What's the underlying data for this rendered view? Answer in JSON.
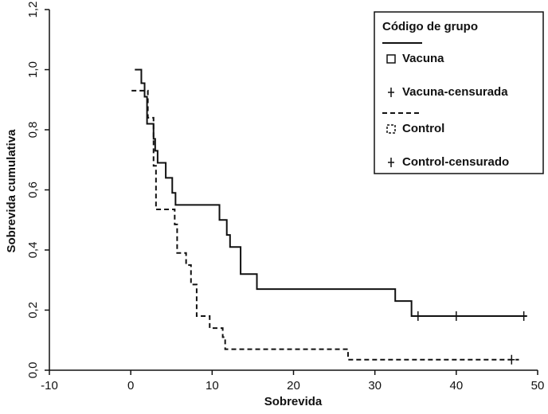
{
  "chart_data": {
    "type": "step",
    "x_label": "Sobrevida",
    "y_label": "Sobrevida cumulativa",
    "legend_title": "Código de grupo",
    "legend_position": "upper right",
    "xlim": [
      -10,
      50
    ],
    "xticks": [
      -10,
      0,
      10,
      20,
      30,
      40,
      50
    ],
    "ylim": [
      0,
      1.2
    ],
    "yticks": [
      {
        "value": 0,
        "label": "0,0"
      },
      {
        "value": 0.2,
        "label": "0,2"
      },
      {
        "value": 0.4,
        "label": "0,4"
      },
      {
        "value": 0.6,
        "label": "0,6"
      },
      {
        "value": 0.8,
        "label": "0,8"
      },
      {
        "value": 1.0,
        "label": "1,0"
      },
      {
        "value": 1.2,
        "label": "1,2"
      }
    ],
    "series": [
      {
        "name": "Vacuna",
        "style": "solid",
        "color": "#111111",
        "x": [
          0.5,
          1.3,
          1.7,
          2.0,
          2.8,
          3.0,
          3.3,
          4.3,
          5.1,
          5.5,
          10.9,
          11.8,
          12.2,
          13.5,
          15.5,
          32.5,
          34.5,
          48.7
        ],
        "values": [
          1.0,
          0.955,
          0.91,
          0.82,
          0.77,
          0.73,
          0.69,
          0.64,
          0.59,
          0.55,
          0.5,
          0.45,
          0.41,
          0.32,
          0.27,
          0.23,
          0.18,
          0.18
        ]
      },
      {
        "name": "Vacuna-censurada",
        "style": "censor",
        "color": "#111111",
        "x": [
          35.3,
          40,
          48.3
        ],
        "values": [
          0.18,
          0.18,
          0.18
        ]
      },
      {
        "name": "Control",
        "style": "dashed",
        "color": "#111111",
        "x": [
          0.1,
          2.1,
          2.8,
          3.1,
          5.4,
          5.7,
          6.8,
          7.4,
          8.1,
          9.7,
          11.3,
          11.6,
          26.7,
          47.7
        ],
        "values": [
          0.93,
          0.84,
          0.68,
          0.535,
          0.485,
          0.39,
          0.35,
          0.285,
          0.18,
          0.14,
          0.11,
          0.07,
          0.035,
          0.035
        ]
      },
      {
        "name": "Control-censurado",
        "style": "censor",
        "color": "#111111",
        "x": [
          46.8
        ],
        "values": [
          0.035
        ]
      }
    ]
  }
}
